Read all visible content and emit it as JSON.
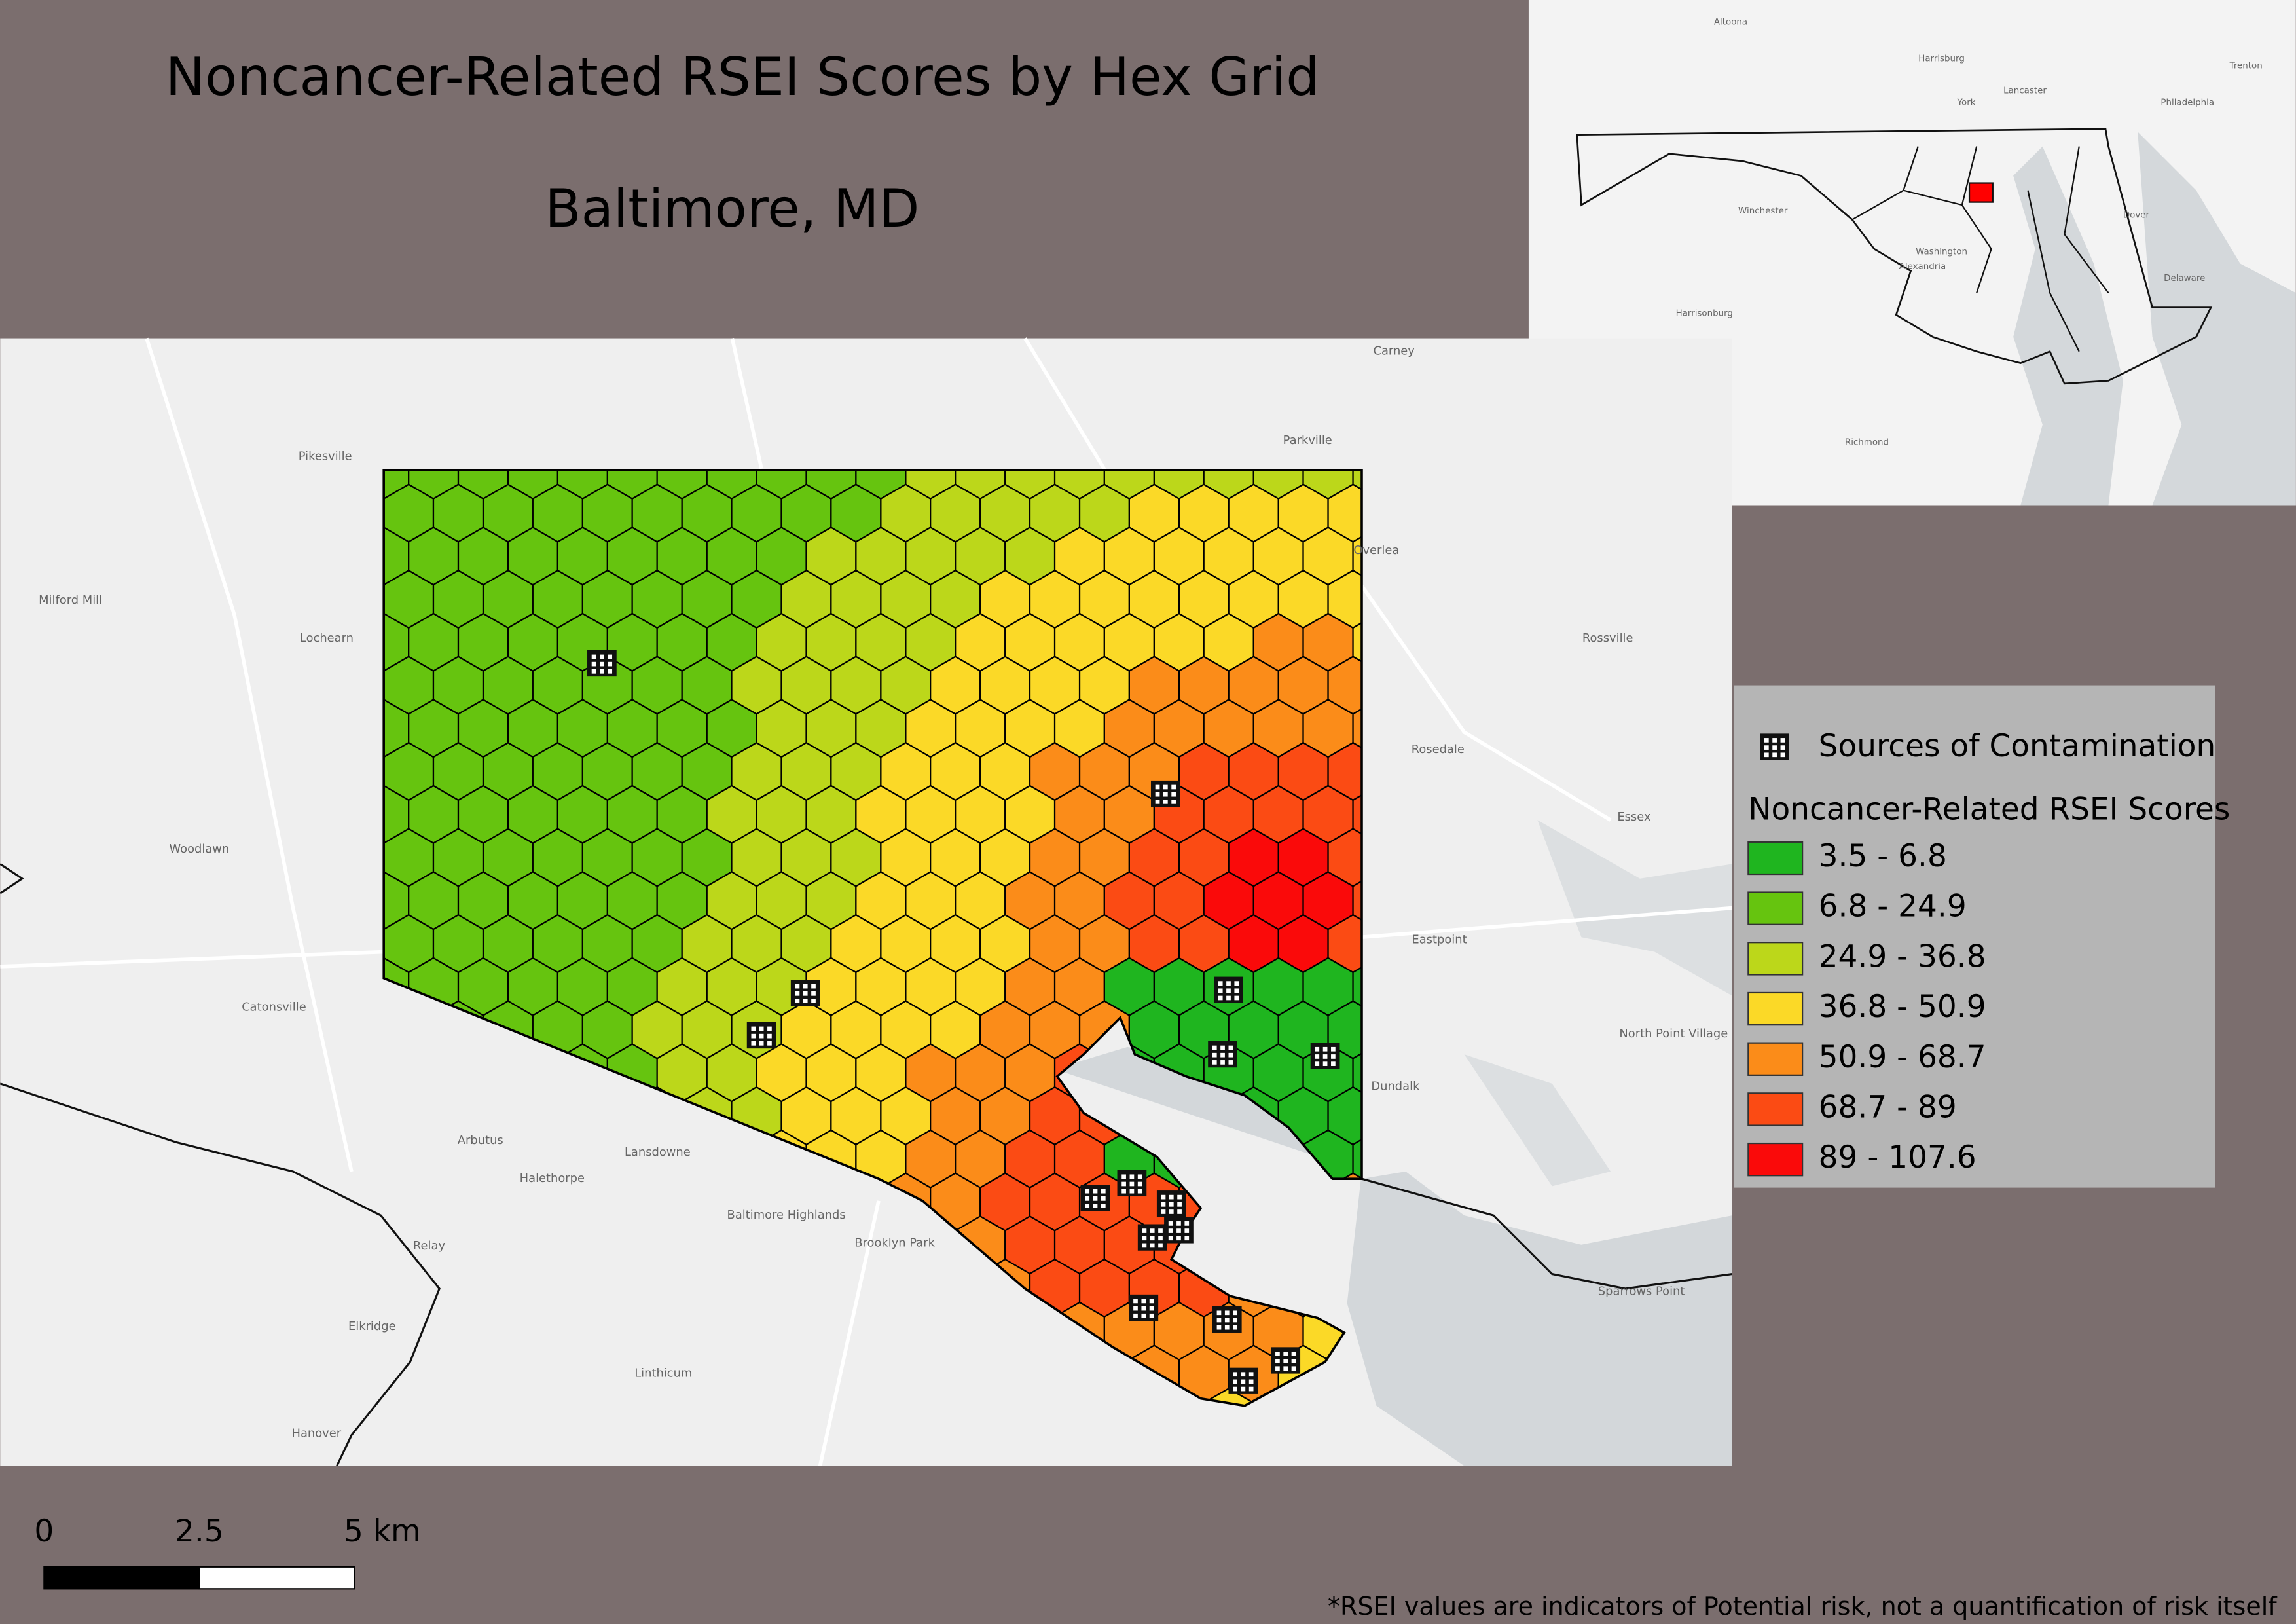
{
  "title": "Noncancer-Related RSEI Scores by Hex Grid",
  "subtitle": "Baltimore, MD",
  "legend": {
    "sources": "Sources of Contamination",
    "title": "Noncancer-Related RSEI Scores",
    "items": [
      {
        "label": "3.5 - 6.8",
        "color": "#1fb51f"
      },
      {
        "label": "6.8 - 24.9",
        "color": "#66c40f"
      },
      {
        "label": "24.9 - 36.8",
        "color": "#bcd71a"
      },
      {
        "label": "36.8 - 50.9",
        "color": "#fbd927"
      },
      {
        "label": "50.9 - 68.7",
        "color": "#fb8c19"
      },
      {
        "label": "68.7 - 89",
        "color": "#fb4b14"
      },
      {
        "label": "89 - 107.6",
        "color": "#fa0a0a"
      }
    ]
  },
  "scale_bar": {
    "labels": [
      "0",
      "2.5",
      "5 km"
    ]
  },
  "footnote": "*RSEI values are indicators of Potential risk, not a quantification of risk itself",
  "map": {
    "places": [
      "Pikesville",
      "Milford Mill",
      "Lochearn",
      "Woodlawn",
      "Catonsville",
      "Arbutus",
      "Halethorpe",
      "Lansdowne",
      "Relay",
      "Elkridge",
      "Linthicum",
      "Hanover",
      "Brooklyn Park",
      "Baltimore Highlands",
      "Carney",
      "Parkville",
      "Overlea",
      "Rossville",
      "Rosedale",
      "Essex",
      "Eastpoint",
      "Dundalk",
      "North Point Village",
      "Sparrows Point"
    ]
  },
  "inset": {
    "places": [
      "Altoona",
      "Harrisburg",
      "York",
      "Lancaster",
      "Philadelphia",
      "Trenton",
      "Winchester",
      "Washington",
      "Alexandria",
      "Dover",
      "Delaware",
      "Richmond",
      "Harrisonburg"
    ]
  }
}
